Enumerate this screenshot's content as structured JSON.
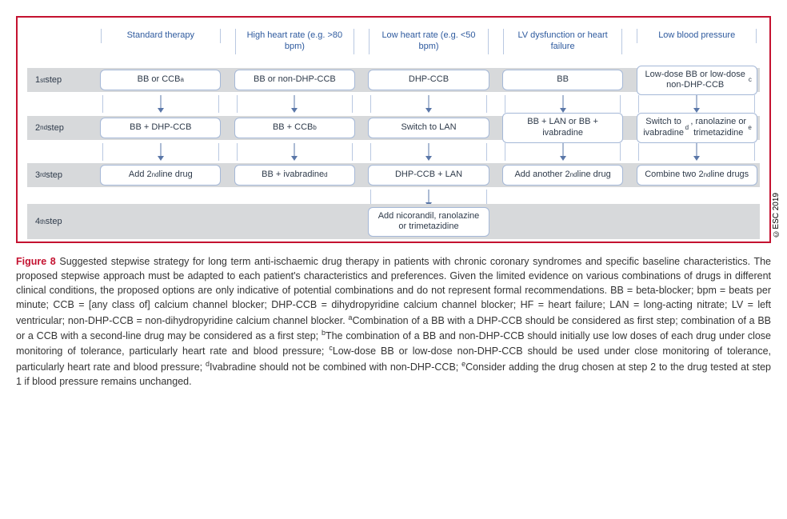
{
  "figure": {
    "type": "flowchart-table",
    "border_color": "#c41230",
    "row_bg_color": "#d7d9db",
    "box_border_color": "#a5b8d7",
    "rail_color": "#b9c8e1",
    "arrow_color": "#5a77a8",
    "header_text_color": "#2e5a9e",
    "columns": [
      "Standard therapy",
      "High heart rate (e.g. >80 bpm)",
      "Low heart rate (e.g. <50 bpm)",
      "LV dysfunction or heart failure",
      "Low blood pressure"
    ],
    "steps": [
      {
        "label_html": "1<sup>st</sup> step",
        "cells": [
          "BB or CCB<sup>a</sup>",
          "BB or non-DHP-CCB",
          "DHP-CCB",
          "BB",
          "Low-dose BB or low-dose non-DHP-CCB<sup>c</sup>"
        ]
      },
      {
        "label_html": "2<sup>nd</sup> step",
        "cells": [
          "BB + DHP-CCB",
          "BB + CCB<sup>b</sup>",
          "Switch to LAN",
          "BB + LAN or BB + ivabradine",
          "Switch to ivabradine<sup>d</sup>, ranolazine or trimetazidine<sup>e</sup>"
        ]
      },
      {
        "label_html": "3<sup>rd</sup> step",
        "cells": [
          "Add 2<sup>nd</sup> line drug",
          "BB + ivabradine<sup>d</sup>",
          "DHP-CCB + LAN",
          "Add another 2<sup>nd</sup> line drug",
          "Combine two 2<sup>nd</sup> line drugs"
        ]
      },
      {
        "label_html": "4<sup>th</sup> step",
        "cells": [
          null,
          null,
          "Add nicorandil, ranolazine or trimetazidine",
          null,
          null
        ]
      }
    ],
    "arrows_after_step": [
      [
        true,
        true,
        true,
        true,
        true
      ],
      [
        true,
        true,
        true,
        true,
        true
      ],
      [
        false,
        false,
        true,
        false,
        false
      ]
    ],
    "copyright": "©ESC 2019"
  },
  "caption": {
    "label": "Figure 8",
    "text_html": "Suggested stepwise strategy for long term anti-ischaemic drug therapy in patients with chronic coronary syndromes and specific baseline characteristics. The proposed stepwise approach must be adapted to each patient's characteristics and preferences. Given the limited evidence on various combinations of drugs in different clinical conditions, the proposed options are only indicative of potential combinations and do not represent formal recommendations. BB = beta-blocker; bpm = beats per minute; CCB = [any class of] calcium channel blocker; DHP-CCB = dihydropyridine calcium channel blocker; HF = heart failure; LAN = long-acting nitrate; LV = left ventricular; non-DHP-CCB = non-dihydropyridine calcium channel blocker. <sup>a</sup>Combination of a BB with a DHP-CCB should be considered as first step; combination of a BB or a CCB with a second-line drug may be considered as a first step; <sup>b</sup>The combination of a BB and non-DHP-CCB should initially use low doses of each drug under close monitoring of tolerance, particularly heart rate and blood pressure; <sup>c</sup>Low-dose BB or low-dose non-DHP-CCB should be used under close monitoring of tolerance, particularly heart rate and blood pressure; <sup>d</sup>Ivabradine should not be combined with non-DHP-CCB; <sup>e</sup>Consider adding the drug chosen at step 2 to the drug tested at step 1 if blood pressure remains unchanged."
  }
}
